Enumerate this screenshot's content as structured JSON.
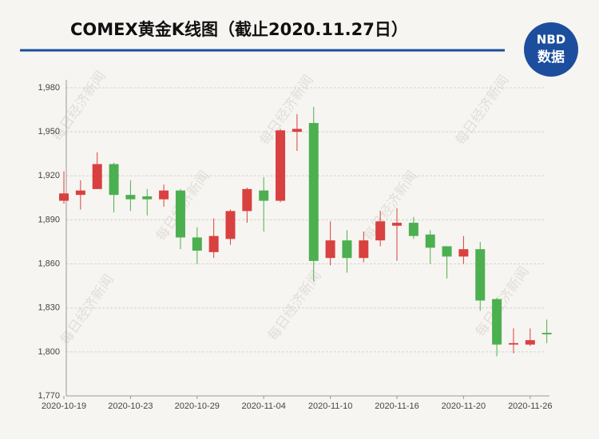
{
  "chart_data": {
    "type": "candlestick",
    "title": "COMEX黄金K线图（截止2020.11.27日）",
    "categories": [
      "2020-10-19",
      null,
      null,
      null,
      "2020-10-23",
      null,
      null,
      null,
      "2020-10-29",
      null,
      null,
      null,
      "2020-11-04",
      null,
      null,
      null,
      "2020-11-10",
      null,
      null,
      null,
      "2020-11-16",
      null,
      null,
      null,
      "2020-11-20",
      null,
      null,
      null,
      "2020-11-26",
      null
    ],
    "open": [
      1903,
      1907,
      1911,
      1928,
      1907,
      1906,
      1904,
      1910,
      1878,
      1868,
      1877,
      1896,
      1910,
      1903,
      1950,
      1956,
      1864,
      1876,
      1864,
      1876,
      1886,
      1888,
      1880,
      1872,
      1865,
      1870,
      1836,
      1805,
      1805,
      1813
    ],
    "high": [
      1923,
      1917,
      1936,
      1929,
      1917,
      1911,
      1914,
      1911,
      1885,
      1891,
      1897,
      1912,
      1919,
      1952,
      1962,
      1967,
      1889,
      1883,
      1882,
      1896,
      1898,
      1892,
      1883,
      1872,
      1879,
      1875,
      1837,
      1816,
      1816,
      1822
    ],
    "low": [
      1901,
      1897,
      1911,
      1895,
      1896,
      1893,
      1899,
      1870,
      1860,
      1864,
      1873,
      1888,
      1882,
      1902,
      1937,
      1848,
      1859,
      1854,
      1861,
      1872,
      1862,
      1877,
      1860,
      1850,
      1860,
      1828,
      1797,
      1799,
      1804,
      1806
    ],
    "close": [
      1908,
      1910,
      1928,
      1907,
      1904,
      1904,
      1910,
      1878,
      1869,
      1879,
      1896,
      1911,
      1903,
      1951,
      1952,
      1862,
      1876,
      1864,
      1876,
      1889,
      1888,
      1879,
      1871,
      1865,
      1870,
      1835,
      1805,
      1806,
      1808,
      1812
    ],
    "up_color": "#d94040",
    "down_color": "#4caf50",
    "ylim": [
      1770,
      1980
    ],
    "yticks": [
      {
        "value": 1770,
        "label": "1,770"
      },
      {
        "value": 1800,
        "label": "1,800"
      },
      {
        "value": 1830,
        "label": "1,830"
      },
      {
        "value": 1860,
        "label": "1,860"
      },
      {
        "value": 1890,
        "label": "1,890"
      },
      {
        "value": 1920,
        "label": "1,920"
      },
      {
        "value": 1950,
        "label": "1,950"
      },
      {
        "value": 1980,
        "label": "1,980"
      }
    ],
    "grid": true
  },
  "logo": {
    "top": "NBD",
    "bottom": "数据"
  },
  "watermark": "每日经济新闻"
}
